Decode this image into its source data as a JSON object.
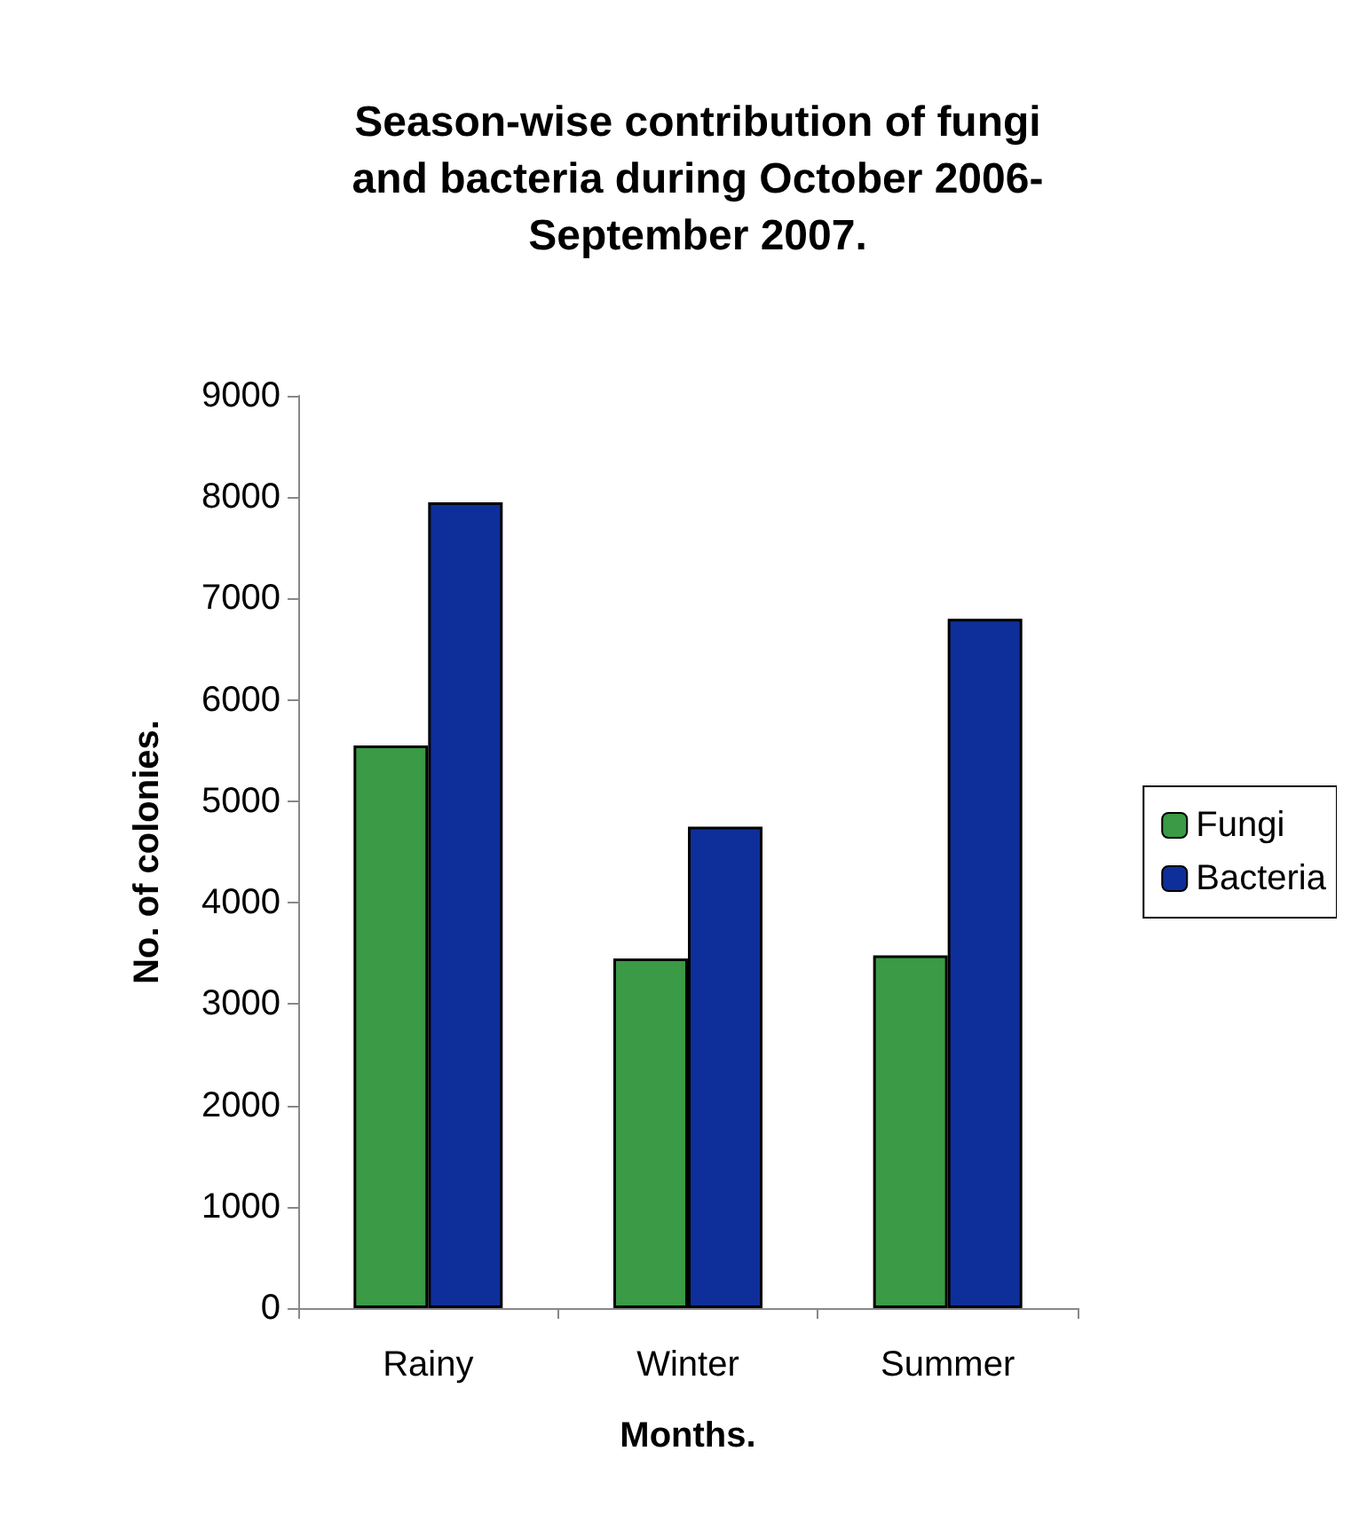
{
  "chart_data": {
    "type": "bar",
    "title": "Season-wise contribution of fungi\nand bacteria during October 2006-\nSeptember 2007.",
    "xlabel": "Months.",
    "ylabel": "No. of colonies.",
    "categories": [
      "Rainy",
      "Winter",
      "Summer"
    ],
    "series": [
      {
        "name": "Fungi",
        "color": "#3a9a45",
        "values": [
          5550,
          3450,
          3480
        ]
      },
      {
        "name": "Bacteria",
        "color": "#0e2f9a",
        "values": [
          7950,
          4750,
          6800
        ]
      }
    ],
    "ylim": [
      0,
      9000
    ],
    "yticks": [
      0,
      1000,
      2000,
      3000,
      4000,
      5000,
      6000,
      7000,
      8000,
      9000
    ],
    "grid": false,
    "legend": "right"
  }
}
